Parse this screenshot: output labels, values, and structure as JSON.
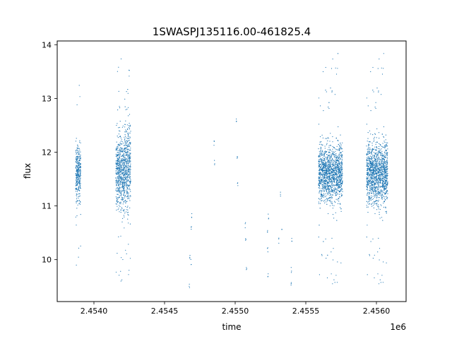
{
  "chart_data": {
    "type": "scatter",
    "title": "1SWASPJ135116.00-461825.4",
    "xlabel": "time",
    "ylabel": "flux",
    "x_offset_label": "1e6",
    "xlim": [
      2453740,
      2456210
    ],
    "ylim": [
      9.22,
      14.07
    ],
    "x_ticks": [
      2.454,
      2.4545,
      2.455,
      2.4555,
      2.456
    ],
    "x_tick_labels": [
      "2.4540",
      "2.4545",
      "2.4550",
      "2.4555",
      "2.4560"
    ],
    "y_ticks": [
      10,
      11,
      12,
      13,
      14
    ],
    "y_tick_labels": [
      "10",
      "11",
      "12",
      "13",
      "14"
    ],
    "grid": false,
    "legend": "none",
    "color": "#1f77b4",
    "clusters": [
      {
        "x_range": [
          2453871,
          2453907
        ],
        "flux_center": 11.6,
        "flux_core": [
          11.0,
          12.25
        ],
        "flux_extremes": [
          9.7,
          13.4
        ]
      },
      {
        "x_range": [
          2454155,
          2454218
        ],
        "flux_center": 11.65,
        "flux_core": [
          10.85,
          12.5
        ],
        "flux_extremes": [
          9.55,
          13.85
        ]
      },
      {
        "x_range": [
          2454218,
          2454260
        ],
        "flux_center": 11.75,
        "flux_core": [
          10.7,
          12.8
        ],
        "flux_extremes": [
          9.6,
          13.8
        ]
      },
      {
        "x_range": [
          2455590,
          2455760
        ],
        "flux_center": 11.62,
        "flux_core": [
          11.0,
          12.3
        ],
        "flux_extremes": [
          9.5,
          13.85
        ]
      },
      {
        "x_range": [
          2455930,
          2456080
        ],
        "flux_center": 11.62,
        "flux_core": [
          10.9,
          12.35
        ],
        "flux_extremes": [
          9.5,
          13.85
        ]
      }
    ],
    "sparse_points": [
      {
        "x": 2454680,
        "y": 10.05
      },
      {
        "x": 2454690,
        "y": 10.6
      },
      {
        "x": 2454688,
        "y": 9.95
      },
      {
        "x": 2454675,
        "y": 9.5
      },
      {
        "x": 2454692,
        "y": 10.8
      },
      {
        "x": 2454850,
        "y": 12.15
      },
      {
        "x": 2454855,
        "y": 11.8
      },
      {
        "x": 2455010,
        "y": 12.58
      },
      {
        "x": 2455015,
        "y": 11.9
      },
      {
        "x": 2455018,
        "y": 11.38
      },
      {
        "x": 2455075,
        "y": 10.35
      },
      {
        "x": 2455080,
        "y": 9.85
      },
      {
        "x": 2455072,
        "y": 10.65
      },
      {
        "x": 2455230,
        "y": 10.2
      },
      {
        "x": 2455228,
        "y": 10.5
      },
      {
        "x": 2455232,
        "y": 9.7
      },
      {
        "x": 2455235,
        "y": 10.8
      },
      {
        "x": 2455320,
        "y": 11.2
      },
      {
        "x": 2455330,
        "y": 10.6
      },
      {
        "x": 2455395,
        "y": 9.55
      },
      {
        "x": 2455398,
        "y": 9.8
      },
      {
        "x": 2455400,
        "y": 10.4
      },
      {
        "x": 2455310,
        "y": 10.35
      }
    ]
  }
}
